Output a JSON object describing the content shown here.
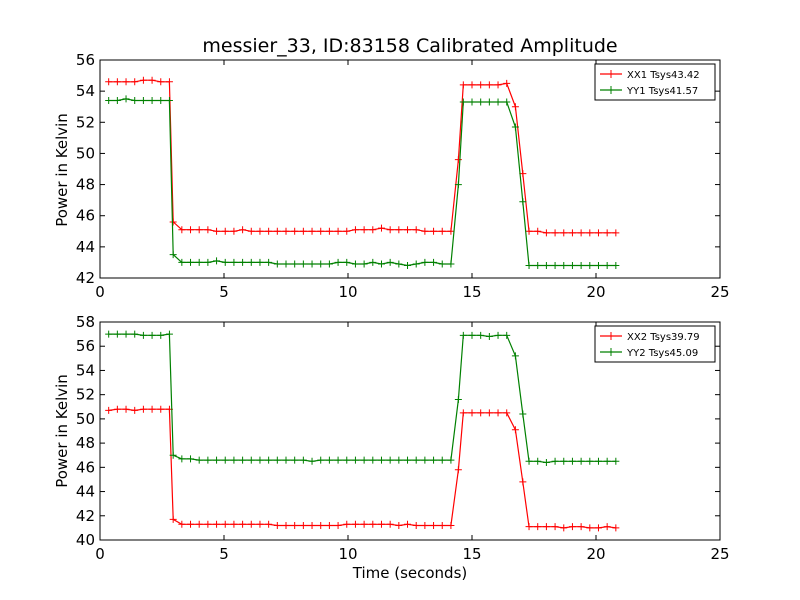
{
  "chart_data": [
    {
      "type": "line",
      "title": "messier_33, ID:83158 Calibrated Amplitude",
      "xlabel": "",
      "ylabel": "Power in Kelvin",
      "xlim": [
        0,
        25
      ],
      "ylim": [
        42,
        56
      ],
      "xticks": [
        "0",
        "5",
        "10",
        "15",
        "20",
        "25"
      ],
      "yticks": [
        "42",
        "44",
        "46",
        "48",
        "50",
        "52",
        "54",
        "56"
      ],
      "legend_position": "top-right",
      "grid": false,
      "x": [
        0.35,
        0.7,
        1.05,
        1.4,
        1.75,
        2.1,
        2.45,
        2.8,
        2.95,
        3.3,
        3.65,
        4.0,
        4.35,
        4.7,
        5.05,
        5.4,
        5.75,
        6.1,
        6.45,
        6.8,
        7.15,
        7.5,
        7.85,
        8.2,
        8.55,
        8.9,
        9.25,
        9.6,
        9.95,
        10.3,
        10.65,
        11.0,
        11.35,
        11.7,
        12.05,
        12.4,
        12.75,
        13.1,
        13.45,
        13.8,
        14.15,
        14.45,
        14.65,
        15.0,
        15.35,
        15.7,
        16.05,
        16.4,
        16.75,
        17.05,
        17.3,
        17.65,
        18.0,
        18.35,
        18.7,
        19.05,
        19.4,
        19.75,
        20.1,
        20.45,
        20.8
      ],
      "series": [
        {
          "name": "XX1 Tsys43.42",
          "color": "#ff0000",
          "values": [
            54.6,
            54.6,
            54.6,
            54.6,
            54.7,
            54.7,
            54.6,
            54.6,
            45.6,
            45.1,
            45.1,
            45.1,
            45.1,
            45.0,
            45.0,
            45.0,
            45.1,
            45.0,
            45.0,
            45.0,
            45.0,
            45.0,
            45.0,
            45.0,
            45.0,
            45.0,
            45.0,
            45.0,
            45.0,
            45.1,
            45.1,
            45.1,
            45.2,
            45.1,
            45.1,
            45.1,
            45.1,
            45.0,
            45.0,
            45.0,
            45.0,
            49.6,
            54.4,
            54.4,
            54.4,
            54.4,
            54.4,
            54.5,
            53.0,
            48.7,
            45.0,
            45.0,
            44.9,
            44.9,
            44.9,
            44.9,
            44.9,
            44.9,
            44.9,
            44.9,
            44.9
          ]
        },
        {
          "name": "YY1 Tsys41.57",
          "color": "#008000",
          "values": [
            53.4,
            53.4,
            53.5,
            53.4,
            53.4,
            53.4,
            53.4,
            53.4,
            43.5,
            43.0,
            43.0,
            43.0,
            43.0,
            43.1,
            43.0,
            43.0,
            43.0,
            43.0,
            43.0,
            43.0,
            42.9,
            42.9,
            42.9,
            42.9,
            42.9,
            42.9,
            42.9,
            43.0,
            43.0,
            42.9,
            42.9,
            43.0,
            42.9,
            43.0,
            42.9,
            42.8,
            42.9,
            43.0,
            43.0,
            42.9,
            42.9,
            48.0,
            53.3,
            53.3,
            53.3,
            53.3,
            53.3,
            53.3,
            51.7,
            46.9,
            42.8,
            42.8,
            42.8,
            42.8,
            42.8,
            42.8,
            42.8,
            42.8,
            42.8,
            42.8,
            42.8
          ]
        }
      ]
    },
    {
      "type": "line",
      "title": "",
      "xlabel": "Time (seconds)",
      "ylabel": "Power in Kelvin",
      "xlim": [
        0,
        25
      ],
      "ylim": [
        40,
        58
      ],
      "xticks": [
        "0",
        "5",
        "10",
        "15",
        "20",
        "25"
      ],
      "yticks": [
        "40",
        "42",
        "44",
        "46",
        "48",
        "50",
        "52",
        "54",
        "56",
        "58"
      ],
      "legend_position": "top-right",
      "grid": false,
      "x": [
        0.35,
        0.7,
        1.05,
        1.4,
        1.75,
        2.1,
        2.45,
        2.8,
        2.95,
        3.3,
        3.65,
        4.0,
        4.35,
        4.7,
        5.05,
        5.4,
        5.75,
        6.1,
        6.45,
        6.8,
        7.15,
        7.5,
        7.85,
        8.2,
        8.55,
        8.9,
        9.25,
        9.6,
        9.95,
        10.3,
        10.65,
        11.0,
        11.35,
        11.7,
        12.05,
        12.4,
        12.75,
        13.1,
        13.45,
        13.8,
        14.15,
        14.45,
        14.65,
        15.0,
        15.35,
        15.7,
        16.05,
        16.4,
        16.75,
        17.05,
        17.3,
        17.65,
        18.0,
        18.35,
        18.7,
        19.05,
        19.4,
        19.75,
        20.1,
        20.45,
        20.8
      ],
      "series": [
        {
          "name": "XX2 Tsys39.79",
          "color": "#ff0000",
          "values": [
            50.7,
            50.8,
            50.8,
            50.7,
            50.8,
            50.8,
            50.8,
            50.8,
            41.7,
            41.3,
            41.3,
            41.3,
            41.3,
            41.3,
            41.3,
            41.3,
            41.3,
            41.3,
            41.3,
            41.3,
            41.2,
            41.2,
            41.2,
            41.2,
            41.2,
            41.2,
            41.2,
            41.2,
            41.3,
            41.3,
            41.3,
            41.3,
            41.3,
            41.3,
            41.2,
            41.3,
            41.2,
            41.2,
            41.2,
            41.2,
            41.2,
            45.8,
            50.5,
            50.5,
            50.5,
            50.5,
            50.5,
            50.5,
            49.1,
            44.8,
            41.1,
            41.1,
            41.1,
            41.1,
            41.0,
            41.1,
            41.1,
            41.0,
            41.0,
            41.1,
            41.0
          ]
        },
        {
          "name": "YY2 Tsys45.09",
          "color": "#008000",
          "values": [
            57.0,
            57.0,
            57.0,
            57.0,
            56.9,
            56.9,
            56.9,
            57.0,
            47.0,
            46.7,
            46.7,
            46.6,
            46.6,
            46.6,
            46.6,
            46.6,
            46.6,
            46.6,
            46.6,
            46.6,
            46.6,
            46.6,
            46.6,
            46.6,
            46.5,
            46.6,
            46.6,
            46.6,
            46.6,
            46.6,
            46.6,
            46.6,
            46.6,
            46.6,
            46.6,
            46.6,
            46.6,
            46.6,
            46.6,
            46.6,
            46.6,
            51.6,
            56.9,
            56.9,
            56.9,
            56.8,
            56.9,
            56.9,
            55.2,
            50.4,
            46.5,
            46.5,
            46.4,
            46.5,
            46.5,
            46.5,
            46.5,
            46.5,
            46.5,
            46.5,
            46.5
          ]
        }
      ]
    }
  ]
}
